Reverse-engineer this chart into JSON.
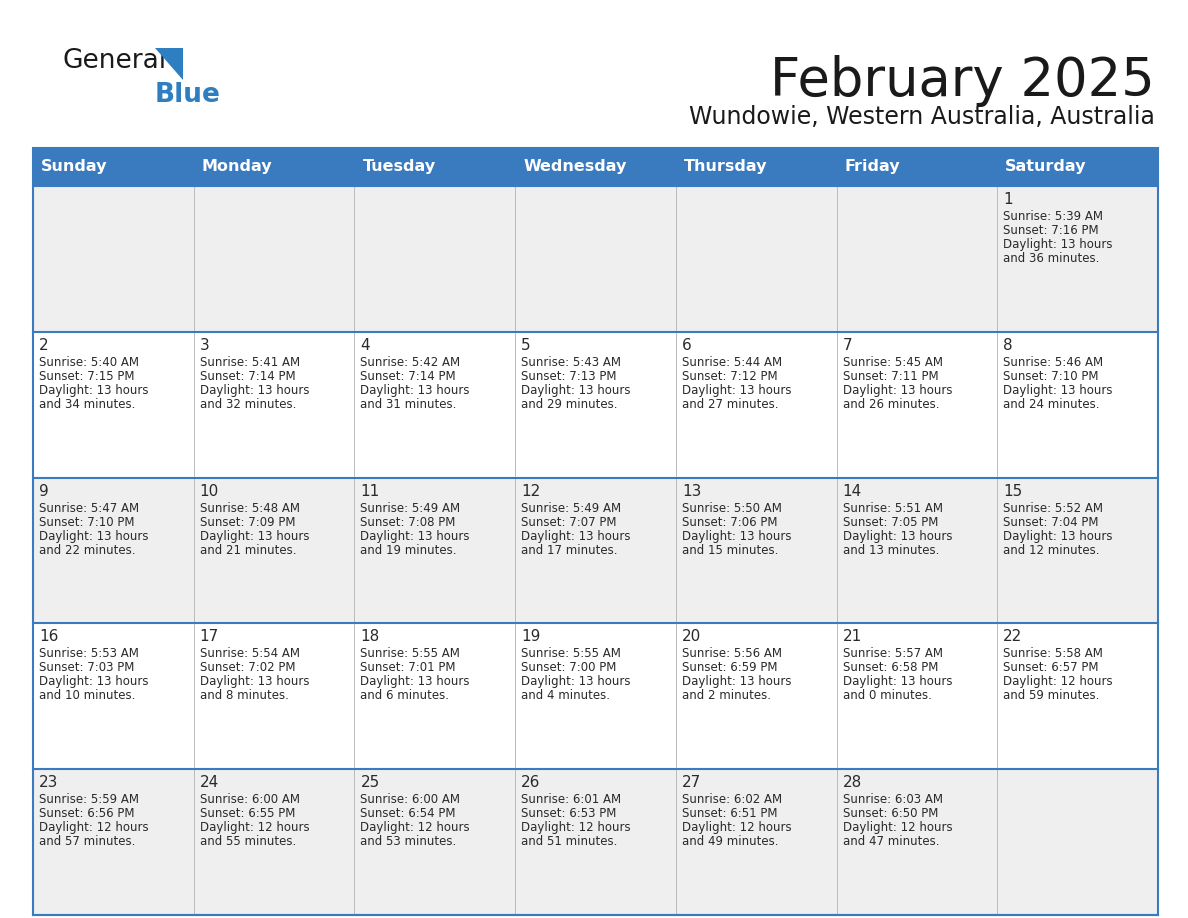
{
  "title": "February 2025",
  "subtitle": "Wundowie, Western Australia, Australia",
  "header_bg": "#3a7abf",
  "header_text": "#ffffff",
  "row_bg_gray": "#efefef",
  "row_bg_white": "#ffffff",
  "border_color": "#3a7abf",
  "divider_color": "#3a7abf",
  "text_color": "#2a2a2a",
  "days_of_week": [
    "Sunday",
    "Monday",
    "Tuesday",
    "Wednesday",
    "Thursday",
    "Friday",
    "Saturday"
  ],
  "weeks": [
    [
      {
        "day": "",
        "info": ""
      },
      {
        "day": "",
        "info": ""
      },
      {
        "day": "",
        "info": ""
      },
      {
        "day": "",
        "info": ""
      },
      {
        "day": "",
        "info": ""
      },
      {
        "day": "",
        "info": ""
      },
      {
        "day": "1",
        "info": "Sunrise: 5:39 AM\nSunset: 7:16 PM\nDaylight: 13 hours\nand 36 minutes."
      }
    ],
    [
      {
        "day": "2",
        "info": "Sunrise: 5:40 AM\nSunset: 7:15 PM\nDaylight: 13 hours\nand 34 minutes."
      },
      {
        "day": "3",
        "info": "Sunrise: 5:41 AM\nSunset: 7:14 PM\nDaylight: 13 hours\nand 32 minutes."
      },
      {
        "day": "4",
        "info": "Sunrise: 5:42 AM\nSunset: 7:14 PM\nDaylight: 13 hours\nand 31 minutes."
      },
      {
        "day": "5",
        "info": "Sunrise: 5:43 AM\nSunset: 7:13 PM\nDaylight: 13 hours\nand 29 minutes."
      },
      {
        "day": "6",
        "info": "Sunrise: 5:44 AM\nSunset: 7:12 PM\nDaylight: 13 hours\nand 27 minutes."
      },
      {
        "day": "7",
        "info": "Sunrise: 5:45 AM\nSunset: 7:11 PM\nDaylight: 13 hours\nand 26 minutes."
      },
      {
        "day": "8",
        "info": "Sunrise: 5:46 AM\nSunset: 7:10 PM\nDaylight: 13 hours\nand 24 minutes."
      }
    ],
    [
      {
        "day": "9",
        "info": "Sunrise: 5:47 AM\nSunset: 7:10 PM\nDaylight: 13 hours\nand 22 minutes."
      },
      {
        "day": "10",
        "info": "Sunrise: 5:48 AM\nSunset: 7:09 PM\nDaylight: 13 hours\nand 21 minutes."
      },
      {
        "day": "11",
        "info": "Sunrise: 5:49 AM\nSunset: 7:08 PM\nDaylight: 13 hours\nand 19 minutes."
      },
      {
        "day": "12",
        "info": "Sunrise: 5:49 AM\nSunset: 7:07 PM\nDaylight: 13 hours\nand 17 minutes."
      },
      {
        "day": "13",
        "info": "Sunrise: 5:50 AM\nSunset: 7:06 PM\nDaylight: 13 hours\nand 15 minutes."
      },
      {
        "day": "14",
        "info": "Sunrise: 5:51 AM\nSunset: 7:05 PM\nDaylight: 13 hours\nand 13 minutes."
      },
      {
        "day": "15",
        "info": "Sunrise: 5:52 AM\nSunset: 7:04 PM\nDaylight: 13 hours\nand 12 minutes."
      }
    ],
    [
      {
        "day": "16",
        "info": "Sunrise: 5:53 AM\nSunset: 7:03 PM\nDaylight: 13 hours\nand 10 minutes."
      },
      {
        "day": "17",
        "info": "Sunrise: 5:54 AM\nSunset: 7:02 PM\nDaylight: 13 hours\nand 8 minutes."
      },
      {
        "day": "18",
        "info": "Sunrise: 5:55 AM\nSunset: 7:01 PM\nDaylight: 13 hours\nand 6 minutes."
      },
      {
        "day": "19",
        "info": "Sunrise: 5:55 AM\nSunset: 7:00 PM\nDaylight: 13 hours\nand 4 minutes."
      },
      {
        "day": "20",
        "info": "Sunrise: 5:56 AM\nSunset: 6:59 PM\nDaylight: 13 hours\nand 2 minutes."
      },
      {
        "day": "21",
        "info": "Sunrise: 5:57 AM\nSunset: 6:58 PM\nDaylight: 13 hours\nand 0 minutes."
      },
      {
        "day": "22",
        "info": "Sunrise: 5:58 AM\nSunset: 6:57 PM\nDaylight: 12 hours\nand 59 minutes."
      }
    ],
    [
      {
        "day": "23",
        "info": "Sunrise: 5:59 AM\nSunset: 6:56 PM\nDaylight: 12 hours\nand 57 minutes."
      },
      {
        "day": "24",
        "info": "Sunrise: 6:00 AM\nSunset: 6:55 PM\nDaylight: 12 hours\nand 55 minutes."
      },
      {
        "day": "25",
        "info": "Sunrise: 6:00 AM\nSunset: 6:54 PM\nDaylight: 12 hours\nand 53 minutes."
      },
      {
        "day": "26",
        "info": "Sunrise: 6:01 AM\nSunset: 6:53 PM\nDaylight: 12 hours\nand 51 minutes."
      },
      {
        "day": "27",
        "info": "Sunrise: 6:02 AM\nSunset: 6:51 PM\nDaylight: 12 hours\nand 49 minutes."
      },
      {
        "day": "28",
        "info": "Sunrise: 6:03 AM\nSunset: 6:50 PM\nDaylight: 12 hours\nand 47 minutes."
      },
      {
        "day": "",
        "info": ""
      }
    ]
  ],
  "logo_general_color": "#1a1a1a",
  "logo_blue_color": "#2e7fc1",
  "logo_triangle_color": "#2e7fc1"
}
